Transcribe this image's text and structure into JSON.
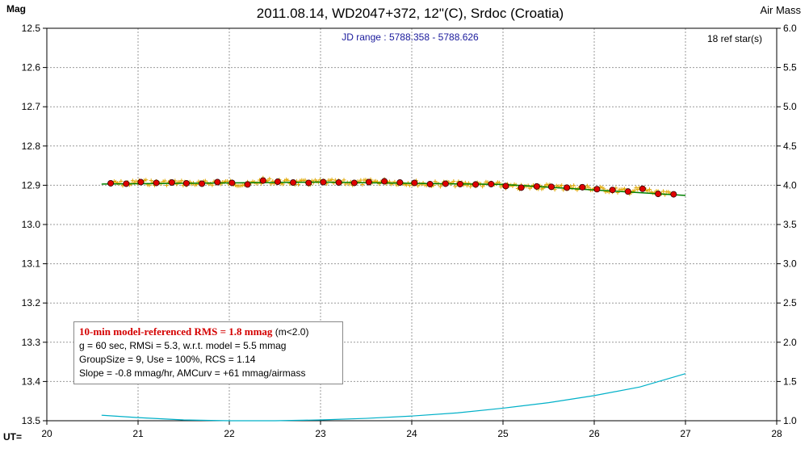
{
  "chart_data": {
    "type": "scatter",
    "title": "2011.08.14, WD2047+372, 12\"(C), Srdoc (Croatia)",
    "subtitle": "JD range : 5788.358 - 5788.626",
    "ref_stars": "18 ref star(s)",
    "ylabel_left": "Mag",
    "ylabel_right": "Air Mass",
    "xlabel": "UT=",
    "xlim": [
      20,
      28
    ],
    "ylim_left": [
      12.5,
      13.5
    ],
    "ylim_right": [
      1.0,
      6.0
    ],
    "left_axis_inverted": true,
    "x_ticks": [
      "20",
      "21",
      "22",
      "23",
      "24",
      "25",
      "26",
      "27",
      "28"
    ],
    "y_ticks_left": [
      "12.5",
      "12.6",
      "12.7",
      "12.8",
      "12.9",
      "13.0",
      "13.1",
      "13.2",
      "13.3",
      "13.4",
      "13.5"
    ],
    "y_ticks_right": [
      "6.0",
      "5.5",
      "5.0",
      "4.5",
      "4.0",
      "3.5",
      "3.0",
      "2.5",
      "2.0",
      "1.5",
      "1.0"
    ],
    "grid": true,
    "colors": {
      "individual": "#e0a800",
      "binned": "#e00000",
      "model": "#008000",
      "airmass": "#00b0c8",
      "grid": "#999999"
    },
    "series": [
      {
        "kind": "binned",
        "x": [
          20.7,
          20.87,
          21.03,
          21.2,
          21.37,
          21.53,
          21.7,
          21.87,
          22.03,
          22.2,
          22.37,
          22.53,
          22.7,
          22.87,
          23.03,
          23.2,
          23.37,
          23.53,
          23.7,
          23.87,
          24.03,
          24.2,
          24.37,
          24.53,
          24.7,
          24.87,
          25.03,
          25.2,
          25.37,
          25.53,
          25.7,
          25.87,
          26.03,
          26.2,
          26.37,
          26.53,
          26.7,
          26.87
        ],
        "y": [
          12.895,
          12.896,
          12.892,
          12.894,
          12.893,
          12.895,
          12.896,
          12.892,
          12.894,
          12.898,
          12.888,
          12.891,
          12.893,
          12.894,
          12.892,
          12.893,
          12.894,
          12.892,
          12.89,
          12.893,
          12.894,
          12.897,
          12.896,
          12.897,
          12.898,
          12.897,
          12.902,
          12.906,
          12.903,
          12.904,
          12.906,
          12.905,
          12.91,
          12.912,
          12.916,
          12.909,
          12.922,
          12.923
        ]
      },
      {
        "kind": "model",
        "x": [
          20.6,
          23.0,
          25.0,
          27.0
        ],
        "y": [
          12.897,
          12.892,
          12.898,
          12.926
        ]
      },
      {
        "kind": "airmass",
        "x": [
          20.6,
          21.0,
          21.5,
          22.0,
          22.5,
          23.0,
          23.5,
          24.0,
          24.5,
          25.0,
          25.5,
          26.0,
          26.5,
          27.0
        ],
        "y": [
          1.07,
          1.04,
          1.01,
          1.0,
          1.0,
          1.01,
          1.03,
          1.06,
          1.1,
          1.16,
          1.23,
          1.32,
          1.43,
          1.6
        ]
      }
    ]
  },
  "stats_box": {
    "line1": "10-min model-referenced RMS = 1.8 mmag",
    "line1_suffix": " (m<2.0)",
    "line2": "g = 60 sec, RMSi = 5.3, w.r.t. model = 5.5 mmag",
    "line3": "GroupSize = 9, Use = 100%, RCS = 1.14",
    "line4": "Slope = -0.8 mmag/hr, AMCurv = +61 mmag/airmass"
  }
}
